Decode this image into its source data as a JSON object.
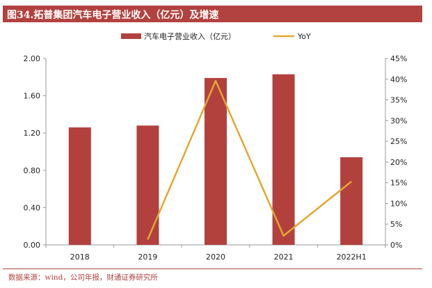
{
  "title": "图34.拓普集团汽车电子营业收入（亿元）及增速",
  "source": "数据来源：wind，公司年报，财通证券研究所",
  "colors": {
    "bar": "#b2413e",
    "line": "#e3a72f",
    "title_bg": "#b2423f"
  },
  "chart_data": {
    "type": "bar",
    "categories": [
      "2018",
      "2019",
      "2020",
      "2021",
      "2022H1"
    ],
    "series": [
      {
        "name": "汽车电子营业收入（亿元）",
        "type": "bar",
        "axis": "left",
        "values": [
          1.26,
          1.28,
          1.79,
          1.83,
          0.94
        ]
      },
      {
        "name": "YoY",
        "type": "line",
        "axis": "right",
        "values": [
          null,
          0.013,
          0.396,
          0.022,
          0.153
        ]
      }
    ],
    "y_left": {
      "ylim": [
        0,
        2.0
      ],
      "ticks": [
        "0.00",
        "0.40",
        "0.80",
        "1.20",
        "1.60",
        "2.00"
      ]
    },
    "y_right": {
      "ylim": [
        0,
        0.45
      ],
      "ticks": [
        "0%",
        "5%",
        "10%",
        "15%",
        "20%",
        "25%",
        "30%",
        "35%",
        "40%",
        "45%"
      ]
    },
    "grid": false,
    "legend_position": "top-center"
  }
}
